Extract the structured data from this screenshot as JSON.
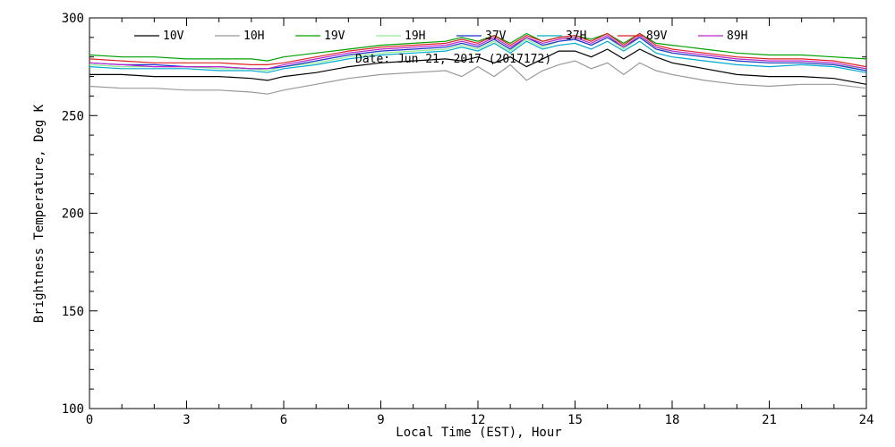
{
  "chart_data": {
    "type": "line",
    "title": "",
    "annotation": "Date: Jun 21, 2017 (2017172)",
    "xlabel": "Local Time (EST), Hour",
    "ylabel": "Brightness Temperature, Deg K",
    "xlim": [
      0,
      24
    ],
    "ylim": [
      100,
      300
    ],
    "xticks": [
      0,
      3,
      6,
      9,
      12,
      15,
      18,
      21,
      24
    ],
    "yticks": [
      100,
      150,
      200,
      250,
      300
    ],
    "grid": false,
    "legend_position": "top",
    "x": [
      0,
      1,
      2,
      3,
      4,
      5,
      5.5,
      6,
      7,
      8,
      9,
      10,
      11,
      11.5,
      12,
      12.5,
      13,
      13.5,
      14,
      14.5,
      15,
      15.5,
      16,
      16.5,
      17,
      17.5,
      18,
      19,
      20,
      21,
      22,
      23,
      24
    ],
    "series": [
      {
        "name": "10V",
        "color": "#000000",
        "values": [
          271,
          271,
          270,
          270,
          270,
          269,
          268,
          270,
          272,
          275,
          277,
          278,
          279,
          278,
          280,
          277,
          280,
          275,
          279,
          283,
          283,
          280,
          284,
          279,
          284,
          280,
          277,
          274,
          271,
          270,
          270,
          269,
          266
        ]
      },
      {
        "name": "10H",
        "color": "#999999",
        "values": [
          265,
          264,
          264,
          263,
          263,
          262,
          261,
          263,
          266,
          269,
          271,
          272,
          273,
          270,
          275,
          270,
          276,
          268,
          273,
          276,
          278,
          274,
          277,
          271,
          277,
          273,
          271,
          268,
          266,
          265,
          266,
          266,
          264
        ]
      },
      {
        "name": "19V",
        "color": "#00a000",
        "values": [
          281,
          280,
          280,
          279,
          279,
          279,
          278,
          280,
          282,
          284,
          286,
          287,
          288,
          290,
          288,
          291,
          287,
          292,
          288,
          290,
          291,
          289,
          292,
          287,
          292,
          287,
          286,
          284,
          282,
          281,
          281,
          280,
          279
        ]
      },
      {
        "name": "19H",
        "color": "#90ee90",
        "values": [
          276,
          275,
          275,
          275,
          274,
          274,
          273,
          275,
          277,
          280,
          282,
          283,
          284,
          286,
          284,
          288,
          283,
          289,
          285,
          288,
          289,
          286,
          290,
          284,
          290,
          285,
          282,
          280,
          278,
          277,
          277,
          276,
          274
        ]
      },
      {
        "name": "37V",
        "color": "#1a33cc",
        "values": [
          277,
          276,
          276,
          275,
          275,
          274,
          274,
          275,
          278,
          281,
          283,
          284,
          285,
          287,
          285,
          289,
          284,
          290,
          286,
          288,
          289,
          286,
          290,
          285,
          290,
          284,
          282,
          280,
          278,
          277,
          277,
          276,
          273
        ]
      },
      {
        "name": "37H",
        "color": "#00aacc",
        "values": [
          275,
          274,
          274,
          274,
          273,
          273,
          272,
          274,
          276,
          279,
          281,
          282,
          283,
          285,
          283,
          287,
          282,
          288,
          284,
          286,
          287,
          284,
          288,
          283,
          288,
          282,
          280,
          278,
          276,
          275,
          276,
          275,
          272
        ]
      },
      {
        "name": "89V",
        "color": "#dd2222",
        "values": [
          279,
          278,
          277,
          277,
          277,
          276,
          276,
          277,
          280,
          283,
          285,
          286,
          287,
          289,
          287,
          291,
          286,
          291,
          288,
          290,
          291,
          288,
          292,
          286,
          292,
          286,
          284,
          282,
          280,
          279,
          279,
          278,
          275
        ]
      },
      {
        "name": "89H",
        "color": "#bb22cc",
        "values": [
          277,
          276,
          275,
          275,
          275,
          274,
          274,
          276,
          279,
          282,
          284,
          285,
          286,
          288,
          286,
          290,
          285,
          290,
          287,
          289,
          290,
          287,
          291,
          285,
          291,
          285,
          283,
          281,
          279,
          278,
          278,
          277,
          274
        ]
      }
    ]
  }
}
